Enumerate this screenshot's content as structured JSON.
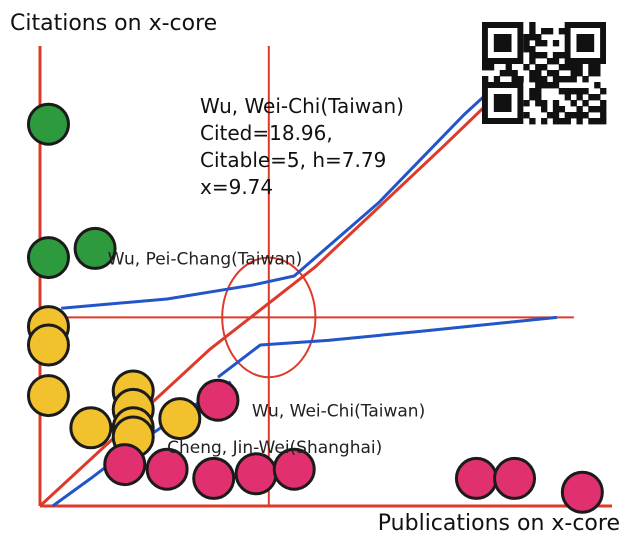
{
  "chart_data": {
    "type": "scatter",
    "title": "",
    "ylabel": "Citations on x-core",
    "xlabel": "Publications on x-core",
    "grid": false,
    "legend": "none",
    "groups": [
      {
        "color": "#2e9a3e",
        "points": [
          [
            0.2,
            8.3
          ],
          [
            0.2,
            5.4
          ],
          [
            1.3,
            5.6
          ]
        ]
      },
      {
        "color": "#f2c12e",
        "points": [
          [
            0.2,
            3.9
          ],
          [
            0.2,
            3.5
          ],
          [
            0.2,
            2.4
          ],
          [
            2.2,
            2.5
          ],
          [
            2.2,
            2.1
          ],
          [
            1.2,
            1.7
          ],
          [
            2.2,
            1.7
          ],
          [
            3.3,
            1.9
          ],
          [
            2.2,
            1.5
          ]
        ]
      },
      {
        "color": "#e0306f",
        "points": [
          [
            4.2,
            2.3
          ],
          [
            2.0,
            0.9
          ],
          [
            3.0,
            0.8
          ],
          [
            4.1,
            0.6
          ],
          [
            5.1,
            0.7
          ],
          [
            6.0,
            0.8
          ],
          [
            10.3,
            0.6
          ],
          [
            11.2,
            0.6
          ],
          [
            12.8,
            0.3
          ]
        ]
      }
    ],
    "annotations": [
      {
        "label": "Wu, Pei-Chang(Taiwan)",
        "x": 1.6,
        "y": 5.4
      },
      {
        "label": "Wu, Wei-Chi(Taiwan)",
        "x": 5.0,
        "y": 2.1
      },
      {
        "label": "Cheng, Jin-Wei(Shanghai)",
        "x": 3.0,
        "y": 1.3
      }
    ],
    "info_text": [
      "Wu, Wei-Chi(Taiwan)",
      " Cited=18.96,",
      "Citable=5, h=7.79",
      "x=9.74"
    ],
    "curves": [
      {
        "color": "#2255c8",
        "points": [
          [
            0.5,
            4.3
          ],
          [
            3.0,
            4.5
          ],
          [
            5.0,
            4.8
          ],
          [
            6.0,
            5.0
          ],
          [
            8.0,
            6.6
          ],
          [
            10.0,
            8.5
          ],
          [
            11.3,
            9.6
          ]
        ]
      },
      {
        "color": "#2255c8",
        "points": [
          [
            4.2,
            2.8
          ],
          [
            5.2,
            3.5
          ],
          [
            6.8,
            3.6
          ],
          [
            9.0,
            3.8
          ],
          [
            12.2,
            4.1
          ]
        ]
      },
      {
        "color": "#2255c8",
        "points": [
          [
            0.3,
            0.0
          ],
          [
            1.2,
            0.6
          ],
          [
            2.2,
            1.3
          ],
          [
            3.5,
            2.1
          ],
          [
            4.5,
            2.7
          ]
        ]
      },
      {
        "color": "#dd3a2a",
        "points": [
          [
            0.0,
            0.0
          ],
          [
            4.0,
            3.4
          ],
          [
            6.5,
            5.2
          ],
          [
            9.5,
            7.8
          ],
          [
            11.3,
            9.4
          ]
        ]
      }
    ],
    "reference_lines": {
      "color": "#dd3a2a",
      "x": 5.4,
      "y": 4.1
    },
    "reference_circle": {
      "cx": 5.4,
      "cy": 4.1,
      "rx": 1.1,
      "ry": 1.3
    },
    "xlim": [
      0,
      13.5
    ],
    "ylim": [
      0,
      10
    ]
  },
  "icons": {
    "qr": "qr-code-icon"
  }
}
